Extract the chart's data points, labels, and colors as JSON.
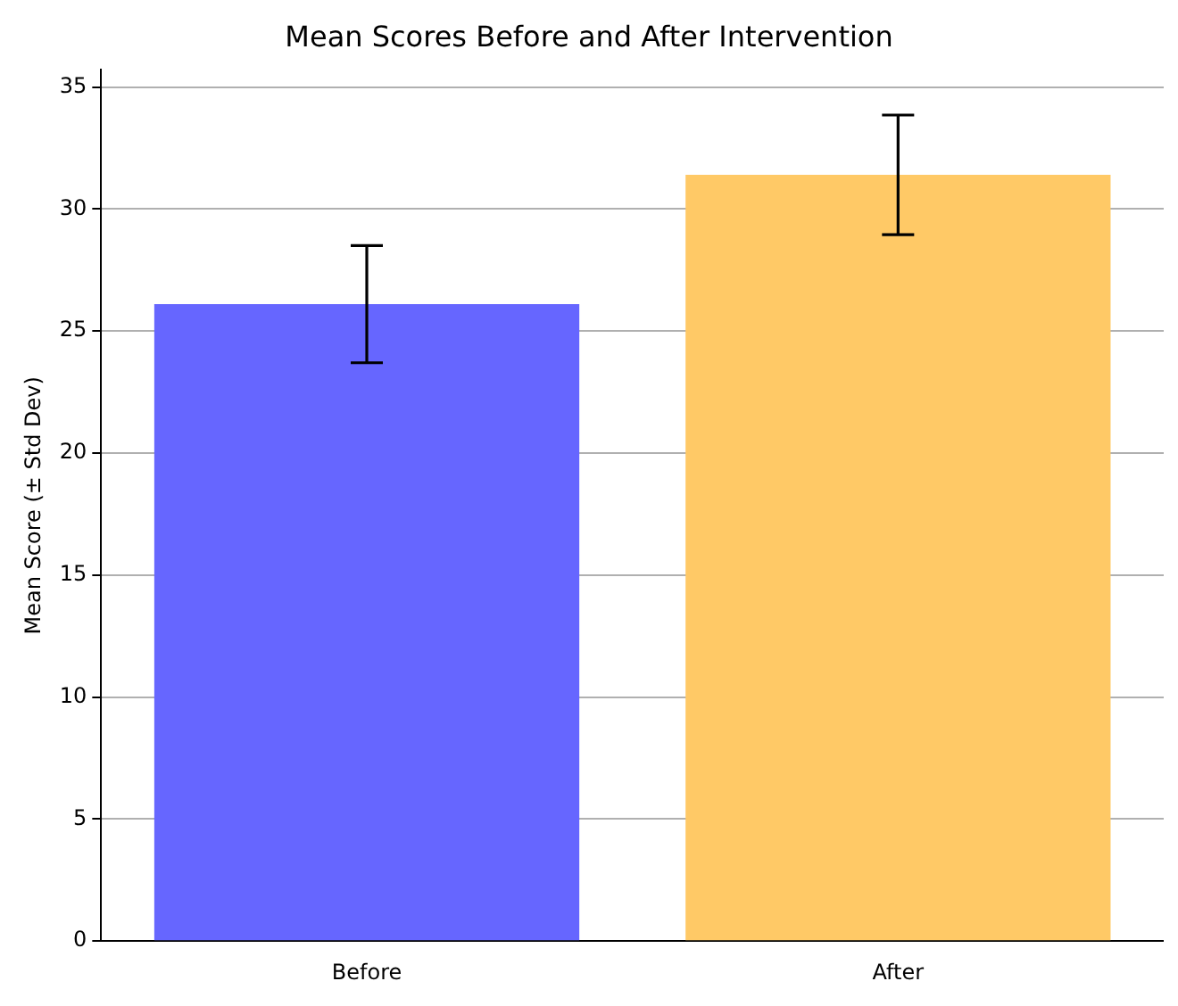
{
  "chart_data": {
    "type": "bar",
    "title": "Mean Scores Before and After Intervention",
    "ylabel": "Mean Score (± Std Dev)",
    "categories": [
      "Before",
      "After"
    ],
    "values": [
      26.1,
      31.4
    ],
    "colors": [
      "#6666ff",
      "#ffc966"
    ],
    "errors": [
      2.4,
      2.45
    ],
    "ylim": [
      0,
      35.7
    ],
    "yticks": [
      0,
      5,
      10,
      15,
      20,
      25,
      30,
      35
    ],
    "grid": "y"
  }
}
